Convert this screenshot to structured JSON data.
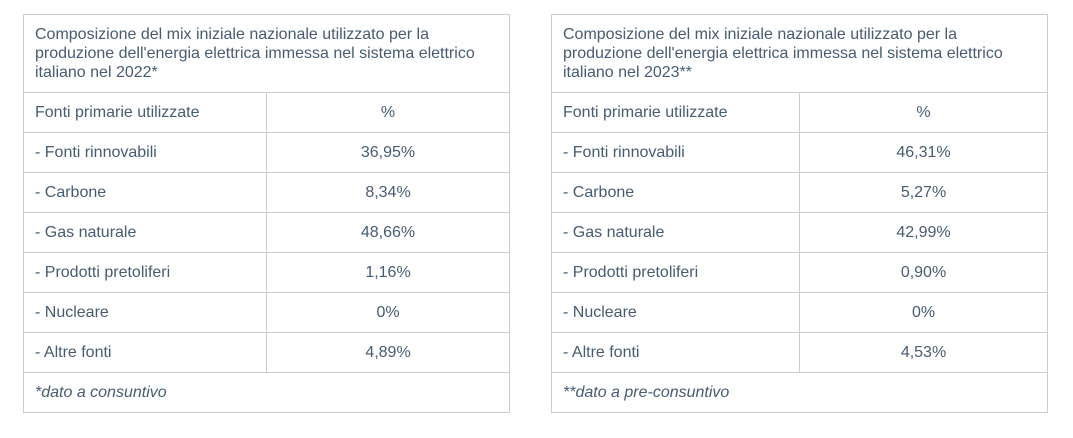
{
  "colors": {
    "text": "#475b73",
    "border_outer": "#b2b6ba",
    "border_inner": "#cbced1",
    "background": "#ffffff"
  },
  "tables": [
    {
      "title": "Composizione del mix iniziale nazionale utilizzato per la produzione dell'energia elettrica immessa nel sistema elettrico italiano nel 2022*",
      "header": {
        "source": "Fonti primarie utilizzate",
        "percent": "%"
      },
      "rows": [
        {
          "label": "- Fonti rinnovabili",
          "value": "36,95%"
        },
        {
          "label": "- Carbone",
          "value": "8,34%"
        },
        {
          "label": "- Gas naturale",
          "value": "48,66%"
        },
        {
          "label": "- Prodotti pretoliferi",
          "value": "1,16%"
        },
        {
          "label": "- Nucleare",
          "value": "0%"
        },
        {
          "label": "- Altre fonti",
          "value": "4,89%"
        }
      ],
      "footnote": "*dato a consuntivo"
    },
    {
      "title": "Composizione del mix iniziale nazionale utilizzato per la produzione dell'energia elettrica immessa nel sistema elettrico italiano nel 2023**",
      "header": {
        "source": "Fonti primarie utilizzate",
        "percent": "%"
      },
      "rows": [
        {
          "label": "- Fonti rinnovabili",
          "value": "46,31%"
        },
        {
          "label": "- Carbone",
          "value": "5,27%"
        },
        {
          "label": "- Gas naturale",
          "value": "42,99%"
        },
        {
          "label": "- Prodotti pretoliferi",
          "value": "0,90%"
        },
        {
          "label": "- Nucleare",
          "value": "0%"
        },
        {
          "label": "- Altre fonti",
          "value": "4,53%"
        }
      ],
      "footnote": "**dato a pre-consuntivo"
    }
  ],
  "chart_data": [
    {
      "type": "table",
      "title": "Composizione del mix iniziale nazionale utilizzato per la produzione dell'energia elettrica immessa nel sistema elettrico italiano nel 2022*",
      "columns": [
        "Fonti primarie utilizzate",
        "%"
      ],
      "categories": [
        "Fonti rinnovabili",
        "Carbone",
        "Gas naturale",
        "Prodotti pretoliferi",
        "Nucleare",
        "Altre fonti"
      ],
      "values": [
        36.95,
        8.34,
        48.66,
        1.16,
        0,
        4.89
      ],
      "footnote": "*dato a consuntivo"
    },
    {
      "type": "table",
      "title": "Composizione del mix iniziale nazionale utilizzato per la produzione dell'energia elettrica immessa nel sistema elettrico italiano nel 2023**",
      "columns": [
        "Fonti primarie utilizzate",
        "%"
      ],
      "categories": [
        "Fonti rinnovabili",
        "Carbone",
        "Gas naturale",
        "Prodotti pretoliferi",
        "Nucleare",
        "Altre fonti"
      ],
      "values": [
        46.31,
        5.27,
        42.99,
        0.9,
        0,
        4.53
      ],
      "footnote": "**dato a pre-consuntivo"
    }
  ]
}
